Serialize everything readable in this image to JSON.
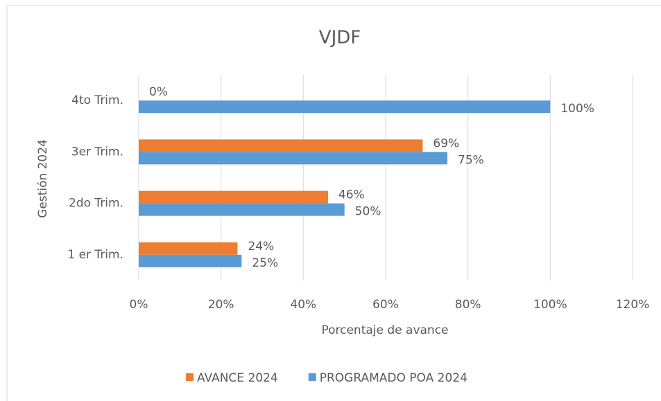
{
  "chart_data": {
    "type": "barh",
    "title": "VJDF",
    "xlabel": "Porcentaje de avance",
    "ylabel": "Gestión 2024",
    "categories": [
      "1 er Trim.",
      "2do Trim.",
      "3er Trim.",
      "4to Trim."
    ],
    "series": [
      {
        "name": "AVANCE 2024",
        "color": "#ed7d31",
        "values": [
          24,
          46,
          69,
          0
        ],
        "value_labels": [
          "24%",
          "46%",
          "69%",
          "0%"
        ]
      },
      {
        "name": "PROGRAMADO POA 2024",
        "color": "#5b9bd5",
        "values": [
          25,
          50,
          75,
          100
        ],
        "value_labels": [
          "25%",
          "50%",
          "75%",
          "100%"
        ]
      }
    ],
    "xlim": [
      0,
      120
    ],
    "xticks": [
      {
        "value": 0,
        "label": "0%"
      },
      {
        "value": 20,
        "label": "20%"
      },
      {
        "value": 40,
        "label": "40%"
      },
      {
        "value": 60,
        "label": "60%"
      },
      {
        "value": 80,
        "label": "80%"
      },
      {
        "value": 100,
        "label": "100%"
      },
      {
        "value": 120,
        "label": "120%"
      }
    ],
    "grid": true,
    "legend": "bottom"
  }
}
